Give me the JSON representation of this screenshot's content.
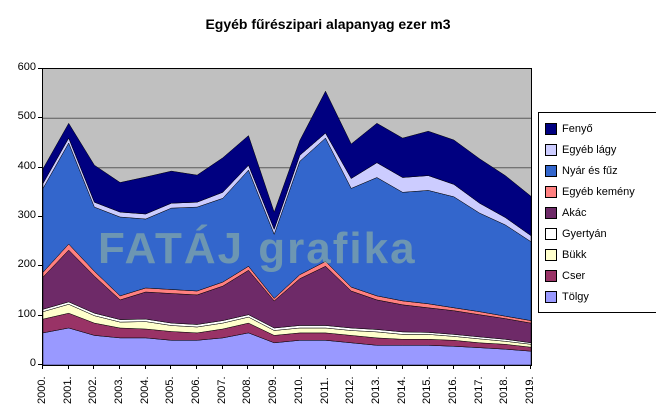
{
  "title": "Egyéb fűrészipari alapanyag ezer m3",
  "watermark": "FATÁJ grafika",
  "chart_data": {
    "type": "area",
    "stacked": true,
    "title": "Egyéb fűrészipari alapanyag ezer m3",
    "xlabel": "",
    "ylabel": "",
    "ylim": [
      0,
      600
    ],
    "ytick_interval": 100,
    "y_tick_labels": [
      "0",
      "100",
      "200",
      "300",
      "400",
      "500",
      "600"
    ],
    "grid": true,
    "plot_background": "#C0C0C0",
    "gridline_color": "#5a5a5a",
    "legend_position": "right",
    "legend_top_to_bottom": [
      "Fenyő",
      "Egyéb lágy",
      "Nyár és fűz",
      "Egyéb kemény",
      "Akác",
      "Gyertyán",
      "Bükk",
      "Cser",
      "Tölgy"
    ],
    "categories": [
      "2000.",
      "2001.",
      "2002.",
      "2003.",
      "2004.",
      "2005.",
      "2006.",
      "2007.",
      "2008.",
      "2009.",
      "2010.",
      "2011.",
      "2012.",
      "2013.",
      "2014.",
      "2015.",
      "2016.",
      "2017.",
      "2018.",
      "2019."
    ],
    "series": [
      {
        "name": "Tölgy",
        "color": "#9999FF",
        "values": [
          65,
          75,
          60,
          55,
          55,
          50,
          50,
          55,
          65,
          45,
          50,
          50,
          45,
          40,
          40,
          40,
          38,
          35,
          32,
          28
        ]
      },
      {
        "name": "Cser",
        "color": "#993366",
        "values": [
          28,
          30,
          25,
          20,
          18,
          18,
          15,
          18,
          20,
          15,
          15,
          15,
          15,
          15,
          12,
          12,
          12,
          10,
          10,
          8
        ]
      },
      {
        "name": "Bükk",
        "color": "#FFFFCC",
        "values": [
          15,
          18,
          15,
          12,
          15,
          12,
          12,
          12,
          12,
          10,
          10,
          10,
          10,
          12,
          10,
          10,
          8,
          8,
          6,
          6
        ]
      },
      {
        "name": "Gyertyán",
        "color": "#FFFFFF",
        "values": [
          5,
          5,
          5,
          5,
          5,
          5,
          5,
          5,
          5,
          5,
          5,
          5,
          5,
          5,
          5,
          4,
          4,
          4,
          4,
          3
        ]
      },
      {
        "name": "Akác",
        "color": "#6E2A68",
        "values": [
          65,
          105,
          75,
          40,
          55,
          60,
          60,
          70,
          90,
          55,
          95,
          120,
          75,
          60,
          55,
          50,
          48,
          45,
          42,
          40
        ]
      },
      {
        "name": "Egyéb kemény",
        "color": "#FF8080",
        "values": [
          10,
          12,
          10,
          8,
          8,
          8,
          8,
          8,
          8,
          5,
          8,
          10,
          8,
          8,
          8,
          8,
          6,
          6,
          5,
          5
        ]
      },
      {
        "name": "Nyár és fűz",
        "color": "#3366CC",
        "values": [
          170,
          205,
          130,
          160,
          140,
          165,
          170,
          170,
          195,
          130,
          230,
          250,
          200,
          240,
          220,
          230,
          225,
          200,
          185,
          160
        ]
      },
      {
        "name": "Egyéb lágy",
        "color": "#CCCCFF",
        "values": [
          10,
          10,
          10,
          10,
          10,
          10,
          10,
          12,
          10,
          10,
          12,
          10,
          20,
          30,
          30,
          30,
          25,
          20,
          15,
          12
        ]
      },
      {
        "name": "Fenyő",
        "color": "#000080",
        "values": [
          30,
          30,
          75,
          60,
          75,
          65,
          55,
          70,
          60,
          35,
          30,
          85,
          70,
          80,
          80,
          90,
          90,
          90,
          85,
          80
        ]
      }
    ]
  }
}
